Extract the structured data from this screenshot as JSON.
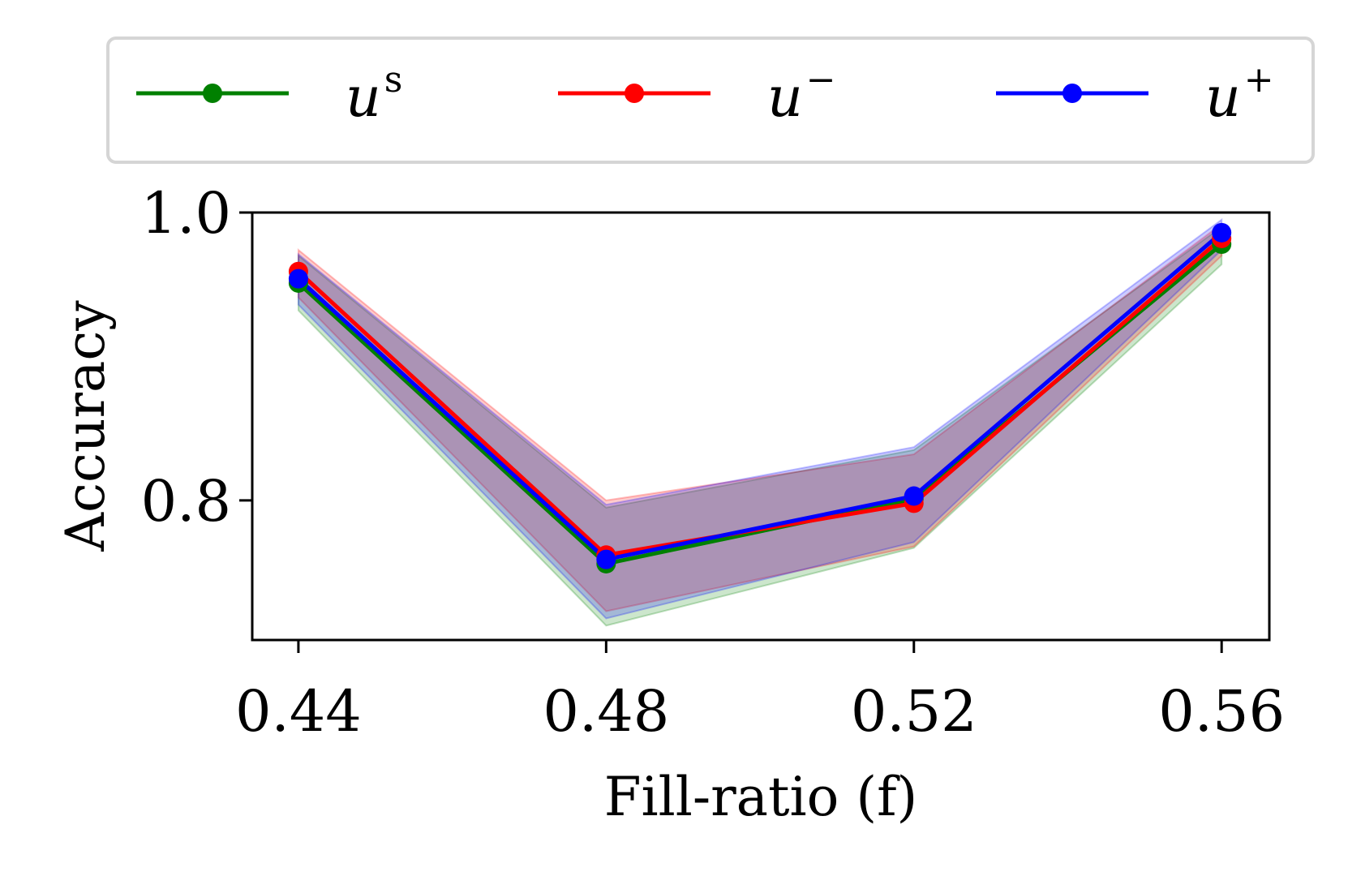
{
  "chart_data": {
    "type": "line",
    "title": "",
    "xlabel": "Fill-ratio (f)",
    "ylabel": "Accuracy",
    "x": [
      0.44,
      0.48,
      0.52,
      0.56
    ],
    "xticks": [
      0.44,
      0.48,
      0.52,
      0.56
    ],
    "xtick_labels": [
      "0.44",
      "0.48",
      "0.52",
      "0.56"
    ],
    "xlim": [
      0.434,
      0.5662
    ],
    "yticks": [
      0.8,
      1.0
    ],
    "ytick_labels": [
      "0.8",
      "1.0"
    ],
    "ylim": [
      0.703,
      1.0
    ],
    "grid": false,
    "legend_position": "top",
    "series": [
      {
        "name": "u^s",
        "label_base": "u",
        "label_sup": "s",
        "color": "#008000",
        "values": [
          0.951,
          0.756,
          0.801,
          0.978
        ],
        "lower": [
          0.932,
          0.713,
          0.767,
          0.964
        ],
        "upper": [
          0.97,
          0.795,
          0.835,
          0.99
        ]
      },
      {
        "name": "u^-",
        "label_base": "u",
        "label_sup": "−",
        "color": "#ff0000",
        "values": [
          0.959,
          0.762,
          0.798,
          0.982
        ],
        "lower": [
          0.941,
          0.723,
          0.768,
          0.97
        ],
        "upper": [
          0.974,
          0.8,
          0.832,
          0.992
        ]
      },
      {
        "name": "u^+",
        "label_base": "u",
        "label_sup": "+",
        "color": "#0000ff",
        "values": [
          0.954,
          0.759,
          0.803,
          0.986
        ],
        "lower": [
          0.936,
          0.718,
          0.771,
          0.974
        ],
        "upper": [
          0.971,
          0.797,
          0.837,
          0.995
        ]
      }
    ]
  }
}
